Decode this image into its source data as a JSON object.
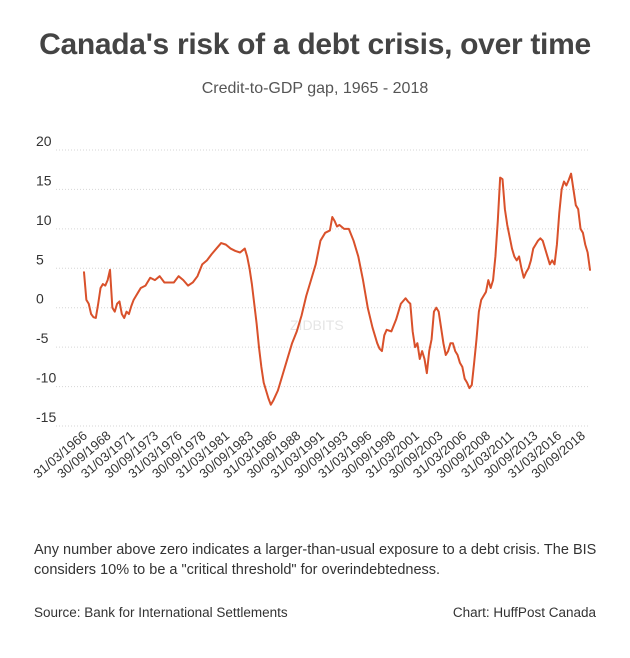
{
  "chart_data": {
    "type": "line",
    "title": "Canada's risk of a debt crisis, over time",
    "subtitle": "Credit-to-GDP gap, 1965 - 2018",
    "xlabel": "",
    "ylabel": "",
    "ylim": [
      -15,
      20
    ],
    "yticks": [
      20,
      15,
      10,
      5,
      0,
      -5,
      -10,
      -15
    ],
    "grid": "horizontal",
    "legend": "none",
    "line_color": "#d9512b",
    "x_tick_labels": [
      "31/03/1966",
      "30/09/1968",
      "31/03/1971",
      "30/09/1973",
      "31/03/1976",
      "30/09/1978",
      "31/03/1981",
      "30/09/1983",
      "31/03/1986",
      "30/09/1988",
      "31/03/1991",
      "30/09/1993",
      "31/03/1996",
      "30/09/1998",
      "31/03/2001",
      "30/09/2003",
      "31/03/2006",
      "30/09/2008",
      "31/03/2011",
      "30/09/2013",
      "31/03/2016",
      "30/09/2018"
    ],
    "x": [
      1965.0,
      1965.25,
      1965.5,
      1965.75,
      1966.0,
      1966.25,
      1966.5,
      1966.75,
      1967.0,
      1967.25,
      1967.5,
      1967.75,
      1968.0,
      1968.25,
      1968.5,
      1968.75,
      1969.0,
      1969.25,
      1969.5,
      1969.75,
      1970.0,
      1970.25,
      1970.5,
      1970.75,
      1971.0,
      1971.5,
      1972.0,
      1972.5,
      1973.0,
      1973.5,
      1974.0,
      1974.5,
      1975.0,
      1975.5,
      1976.0,
      1976.5,
      1977.0,
      1977.5,
      1978.0,
      1978.5,
      1979.0,
      1979.5,
      1980.0,
      1980.5,
      1981.0,
      1981.5,
      1982.0,
      1982.25,
      1982.5,
      1982.75,
      1983.0,
      1983.25,
      1983.5,
      1983.75,
      1984.0,
      1984.25,
      1984.5,
      1984.75,
      1985.0,
      1985.5,
      1986.0,
      1986.5,
      1987.0,
      1987.5,
      1988.0,
      1988.5,
      1989.0,
      1989.5,
      1990.0,
      1990.5,
      1991.0,
      1991.25,
      1991.5,
      1991.75,
      1992.0,
      1992.5,
      1993.0,
      1993.5,
      1994.0,
      1994.5,
      1995.0,
      1995.5,
      1996.0,
      1996.25,
      1996.5,
      1996.75,
      1997.0,
      1997.5,
      1998.0,
      1998.5,
      1999.0,
      1999.25,
      1999.5,
      1999.75,
      2000.0,
      2000.25,
      2000.5,
      2000.75,
      2001.0,
      2001.25,
      2001.5,
      2001.75,
      2002.0,
      2002.25,
      2002.5,
      2002.75,
      2003.0,
      2003.25,
      2003.5,
      2003.75,
      2004.0,
      2004.25,
      2004.5,
      2004.75,
      2005.0,
      2005.25,
      2005.5,
      2005.75,
      2006.0,
      2006.25,
      2006.5,
      2006.75,
      2007.0,
      2007.25,
      2007.5,
      2007.75,
      2008.0,
      2008.25,
      2008.5,
      2008.75,
      2009.0,
      2009.25,
      2009.5,
      2009.75,
      2010.0,
      2010.25,
      2010.5,
      2010.75,
      2011.0,
      2011.25,
      2011.5,
      2011.75,
      2012.0,
      2012.25,
      2012.5,
      2012.75,
      2013.0,
      2013.25,
      2013.5,
      2013.75,
      2014.0,
      2014.25,
      2014.5,
      2014.75,
      2015.0,
      2015.25,
      2015.5,
      2015.75,
      2016.0,
      2016.25,
      2016.5,
      2016.75,
      2017.0,
      2017.25,
      2017.5,
      2017.75,
      2018.0,
      2018.25,
      2018.5
    ],
    "series": [
      {
        "values": [
          4.5,
          1.0,
          0.5,
          -0.8,
          -1.2,
          -1.3,
          0.5,
          2.5,
          3.0,
          2.8,
          3.5,
          4.8,
          0.0,
          -0.5,
          0.5,
          0.8,
          -0.8,
          -1.3,
          -0.5,
          -0.8,
          0.2,
          1.0,
          1.5,
          2.0,
          2.5,
          2.8,
          3.8,
          3.5,
          4.0,
          3.2,
          3.2,
          3.2,
          4.0,
          3.5,
          2.8,
          3.2,
          4.0,
          5.5,
          6.0,
          6.8,
          7.5,
          8.2,
          8.0,
          7.5,
          7.2,
          7.0,
          7.5,
          6.5,
          5.0,
          3.0,
          0.5,
          -2.0,
          -5.0,
          -7.5,
          -9.5,
          -10.5,
          -11.5,
          -12.3,
          -11.8,
          -10.5,
          -8.5,
          -6.5,
          -4.5,
          -3.0,
          -1.0,
          1.5,
          3.5,
          5.5,
          8.5,
          9.5,
          9.8,
          11.5,
          11.0,
          10.3,
          10.5,
          10.0,
          10.0,
          8.5,
          6.5,
          3.5,
          0.0,
          -2.5,
          -4.5,
          -5.2,
          -5.5,
          -3.5,
          -2.8,
          -3.0,
          -1.5,
          0.5,
          1.2,
          0.8,
          0.5,
          -3.0,
          -5.0,
          -4.5,
          -6.5,
          -5.5,
          -6.5,
          -8.3,
          -5.5,
          -4.0,
          -0.5,
          0.0,
          -0.5,
          -2.5,
          -4.5,
          -6.0,
          -5.5,
          -4.5,
          -4.5,
          -5.5,
          -6.0,
          -7.0,
          -7.5,
          -9.0,
          -9.5,
          -10.2,
          -9.8,
          -7.0,
          -4.0,
          -0.5,
          1.0,
          1.5,
          2.0,
          3.5,
          2.5,
          3.5,
          6.5,
          11.0,
          16.5,
          16.3,
          12.5,
          10.5,
          9.0,
          7.5,
          6.5,
          6.0,
          6.5,
          5.0,
          3.8,
          4.5,
          5.0,
          6.0,
          7.5,
          8.0,
          8.5,
          8.8,
          8.5,
          7.5,
          6.5,
          5.5,
          6.0,
          5.5,
          8.0,
          12.0,
          15.0,
          16.0,
          15.5,
          16.2,
          17.0,
          15.0,
          13.0,
          12.5,
          10.0,
          9.5,
          8.0,
          7.0,
          4.8
        ]
      }
    ],
    "watermark": "ZIDBITS"
  },
  "footer": {
    "note": "Any number above zero indicates a larger-than-usual exposure to a debt crisis. The BIS considers 10% to be a \"critical threshold\" for overindebtedness.",
    "source": "Source: Bank for International Settlements",
    "credit": "Chart: HuffPost Canada"
  }
}
